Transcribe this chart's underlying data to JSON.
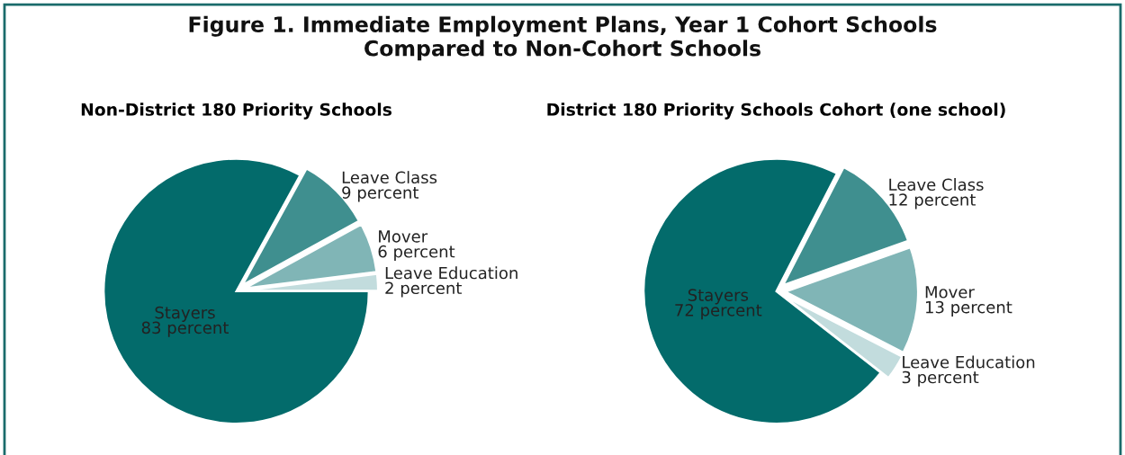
{
  "chart_data": [
    {
      "type": "other",
      "title": "Figure 1. Immediate Employment Plans, Year 1 Cohort Schools\nCompared to Non-Cohort Schools"
    },
    {
      "type": "pie",
      "title": "Non-District 180 Priority Schools",
      "categories": [
        "Leave Education",
        "Mover",
        "Leave Class",
        "Stayers"
      ],
      "values": [
        2,
        6,
        9,
        83
      ],
      "colors": [
        "#c2dcdd",
        "#80b5b6",
        "#3f8f8f",
        "#036b6b"
      ],
      "value_labels": [
        "2 percent",
        "6 percent",
        "9 percent",
        "83 percent"
      ]
    },
    {
      "type": "pie",
      "title": "District 180 Priority Schools Cohort (one school)",
      "categories": [
        "Leave Education",
        "Mover",
        "Leave Class",
        "Stayers"
      ],
      "values": [
        3,
        13,
        12,
        72
      ],
      "colors": [
        "#c2dcdd",
        "#80b5b6",
        "#3f8f8f",
        "#036b6b"
      ],
      "value_labels": [
        "3 percent",
        "13 percent",
        "12 percent",
        "72 percent"
      ]
    }
  ]
}
